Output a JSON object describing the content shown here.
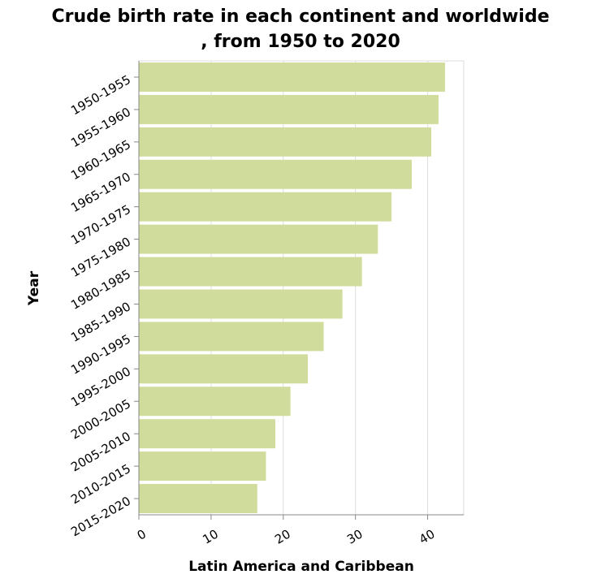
{
  "chart_data": {
    "type": "bar",
    "orientation": "horizontal",
    "title_lines": [
      "Crude birth rate in each continent and worldwide",
      ", from 1950 to 2020"
    ],
    "xlabel": "Latin America and Caribbean",
    "ylabel": "Year",
    "categories": [
      "1950-1955",
      "1955-1960",
      "1960-1965",
      "1965-1970",
      "1970-1975",
      "1975-1980",
      "1980-1985",
      "1985-1990",
      "1990-1995",
      "1995-2000",
      "2000-2005",
      "2005-2010",
      "2010-2015",
      "2015-2020"
    ],
    "values": [
      42.4,
      41.5,
      40.5,
      37.8,
      35.0,
      33.1,
      30.9,
      28.2,
      25.6,
      23.4,
      21.0,
      18.9,
      17.6,
      16.4
    ],
    "xlim": [
      0,
      45
    ],
    "xticks": [
      0,
      10,
      20,
      30,
      40
    ],
    "grid": true,
    "bar_color": "#d0dc9b"
  }
}
